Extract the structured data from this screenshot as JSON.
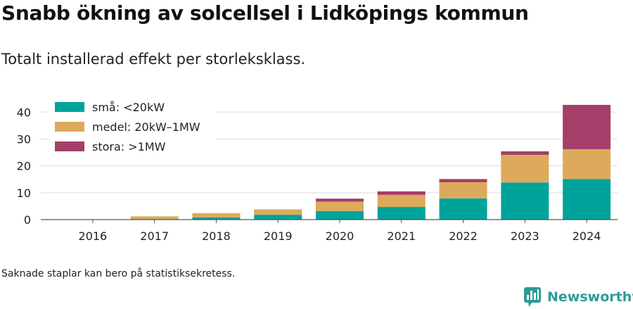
{
  "header": {
    "title": "Snabb ökning av solcellsel i Lidköpings kommun",
    "subtitle": "Totalt installerad effekt per storleksklass."
  },
  "footer": {
    "note": "Saknade staplar kan bero på statistiksekretess.",
    "brand_name": "Newsworthy",
    "brand_icon": "bar-chart-speech-bubble-icon"
  },
  "chart_data": {
    "type": "bar",
    "stacked": true,
    "categories": [
      "2016",
      "2017",
      "2018",
      "2019",
      "2020",
      "2021",
      "2022",
      "2023",
      "2024"
    ],
    "series": [
      {
        "name": "små: <20kW",
        "color": "#00a39a",
        "values": [
          0,
          0.2,
          0.8,
          1.8,
          3.2,
          4.7,
          7.9,
          13.8,
          15.1
        ]
      },
      {
        "name": "medel: 20kW–1MW",
        "color": "#dcaa5a",
        "values": [
          0,
          1.0,
          1.6,
          2.0,
          3.5,
          4.5,
          6.0,
          10.3,
          11.1
        ]
      },
      {
        "name": "stora: >1MW",
        "color": "#a33f68",
        "values": [
          0,
          0,
          0,
          0,
          1.1,
          1.3,
          1.2,
          1.3,
          16.5
        ]
      }
    ],
    "ylim": [
      0,
      44
    ],
    "yticks": [
      0,
      10,
      20,
      30,
      40
    ],
    "grid": true,
    "legend_position": "top-left"
  }
}
